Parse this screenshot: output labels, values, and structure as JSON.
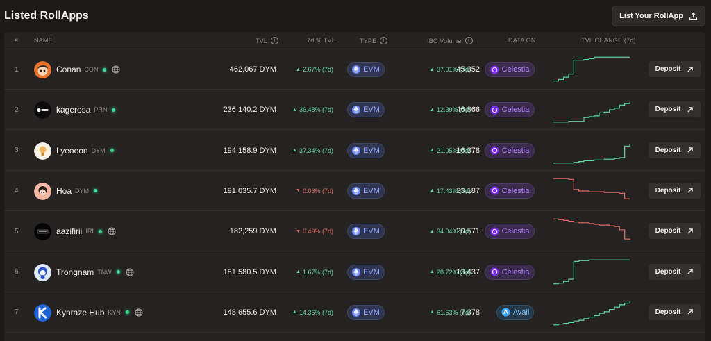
{
  "page": {
    "title": "Listed RollApps",
    "list_button": "List Your RollApp"
  },
  "columns": {
    "num": "#",
    "name": "NAME",
    "tvl": "TVL",
    "tvl_change": "7d % TVL",
    "type": "TYPE",
    "ibc_volume": "IBC Volume",
    "data_on": "DATA ON",
    "tvl_chart": "TVL CHANGE (7d)"
  },
  "rows": [
    {
      "num": "1",
      "name": "Conan",
      "ticker": "CON",
      "globe": true,
      "avatar": "conan-avatar",
      "tvl": "462,067 DYM",
      "tvl_change": "2.67% (7d)",
      "tvl_dir": "up",
      "type": "EVM",
      "ibc": "45,352",
      "ibc_change": "37.01% (7d)",
      "ibc_dir": "up",
      "data_on": "Celestia",
      "trend": [
        3,
        5,
        8,
        12,
        30,
        30,
        31,
        32,
        34,
        34,
        34,
        34,
        34,
        34,
        34,
        34
      ],
      "trend_dir": "up",
      "deposit": "Deposit"
    },
    {
      "num": "2",
      "name": "kagerosa",
      "ticker": "PRN",
      "globe": false,
      "avatar": "kagerosa-avatar",
      "tvl": "236,140.2 DYM",
      "tvl_change": "36.48% (7d)",
      "tvl_dir": "up",
      "type": "EVM",
      "ibc": "46,866",
      "ibc_change": "12.39% (7d)",
      "ibc_dir": "up",
      "data_on": "Celestia",
      "trend": [
        2,
        2,
        2,
        3,
        3,
        3,
        8,
        9,
        10,
        14,
        15,
        18,
        20,
        24,
        26,
        28
      ],
      "trend_dir": "up",
      "deposit": "Deposit"
    },
    {
      "num": "3",
      "name": "Lyeoeon",
      "ticker": "DYM",
      "globe": false,
      "avatar": "lyeoeon-avatar",
      "tvl": "194,158.9 DYM",
      "tvl_change": "37.34% (7d)",
      "tvl_dir": "up",
      "type": "EVM",
      "ibc": "16,378",
      "ibc_change": "21.05% (7d)",
      "ibc_dir": "up",
      "data_on": "Celestia",
      "trend": [
        2,
        2,
        2,
        2,
        3,
        4,
        5,
        5,
        6,
        6,
        7,
        7,
        8,
        9,
        24,
        26
      ],
      "trend_dir": "up",
      "deposit": "Deposit"
    },
    {
      "num": "4",
      "name": "Hoa",
      "ticker": "DYM",
      "globe": false,
      "avatar": "hoa-avatar",
      "tvl": "191,035.7 DYM",
      "tvl_change": "0.03% (7d)",
      "tvl_dir": "down",
      "type": "EVM",
      "ibc": "23,187",
      "ibc_change": "17.43% (7d)",
      "ibc_dir": "up",
      "data_on": "Celestia",
      "trend": [
        34,
        34,
        34,
        33,
        20,
        18,
        18,
        17,
        17,
        17,
        16,
        16,
        16,
        15,
        8,
        8
      ],
      "trend_dir": "down",
      "deposit": "Deposit"
    },
    {
      "num": "5",
      "name": "aazifirii",
      "ticker": "IRI",
      "globe": true,
      "avatar": "aazifirii-avatar",
      "tvl": "182,259 DYM",
      "tvl_change": "0.49% (7d)",
      "tvl_dir": "down",
      "type": "EVM",
      "ibc": "20,571",
      "ibc_change": "34.04% (7d)",
      "ibc_dir": "up",
      "data_on": "Celestia",
      "trend": [
        34,
        33,
        32,
        31,
        30,
        29,
        29,
        28,
        27,
        26,
        26,
        25,
        24,
        20,
        8,
        7
      ],
      "trend_dir": "down",
      "deposit": "Deposit"
    },
    {
      "num": "6",
      "name": "Trongnam",
      "ticker": "TNW",
      "globe": true,
      "avatar": "trongnam-avatar",
      "tvl": "181,580.5 DYM",
      "tvl_change": "1.67% (7d)",
      "tvl_dir": "up",
      "type": "EVM",
      "ibc": "13,437",
      "ibc_change": "28.72% (7d)",
      "ibc_dir": "up",
      "data_on": "Celestia",
      "trend": [
        3,
        4,
        6,
        9,
        32,
        33,
        33,
        34,
        34,
        34,
        34,
        34,
        34,
        34,
        34,
        34
      ],
      "trend_dir": "up",
      "deposit": "Deposit"
    },
    {
      "num": "7",
      "name": "Kynraze Hub",
      "ticker": "KYN",
      "globe": true,
      "avatar": "kynraze-avatar",
      "tvl": "148,655.6 DYM",
      "tvl_change": "14.36% (7d)",
      "tvl_dir": "up",
      "type": "EVM",
      "ibc": "7,378",
      "ibc_change": "61.63% (7d)",
      "ibc_dir": "up",
      "data_on": "Avail",
      "trend": [
        2,
        3,
        4,
        5,
        7,
        8,
        10,
        12,
        14,
        17,
        19,
        22,
        25,
        28,
        30,
        32
      ],
      "trend_dir": "up",
      "deposit": "Deposit"
    }
  ],
  "colors": {
    "up": "#5fd8a5",
    "down": "#e26a63"
  }
}
